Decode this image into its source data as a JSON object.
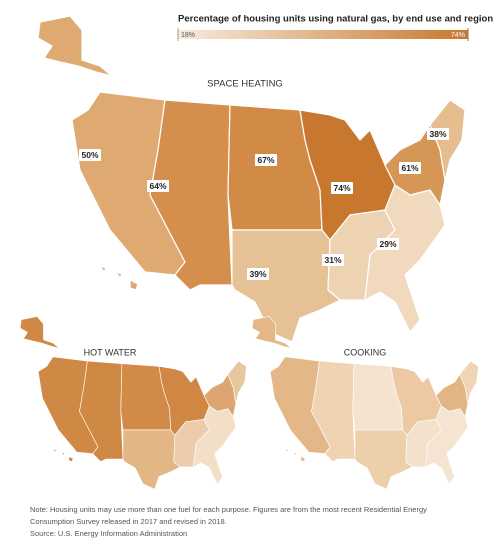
{
  "title": "Percentage of housing units using natural gas, by end use and region",
  "legend": {
    "min_label": "18%",
    "max_label": "74%",
    "colors": [
      "#f7ebdc",
      "#c8782e"
    ]
  },
  "maps": [
    {
      "title": "SPACE HEATING",
      "regions": [
        {
          "label": "50%",
          "color": "#deaa72"
        },
        {
          "label": "64%",
          "color": "#d48f4d"
        },
        {
          "label": "67%",
          "color": "#d28b47"
        },
        {
          "label": "39%",
          "color": "#e6c195"
        },
        {
          "label": "74%",
          "color": "#c8782e"
        },
        {
          "label": "31%",
          "color": "#eed3b3"
        },
        {
          "label": "29%",
          "color": "#f0d9bc"
        },
        {
          "label": "61%",
          "color": "#d69656"
        },
        {
          "label": "38%",
          "color": "#e5bd8f"
        }
      ]
    },
    {
      "title": "HOT WATER",
      "regions": [
        {
          "color": "#d08845"
        },
        {
          "color": "#d08845"
        },
        {
          "color": "#d18a47"
        },
        {
          "color": "#e3b785"
        },
        {
          "color": "#cf8743"
        },
        {
          "color": "#ecccab"
        },
        {
          "color": "#f2dfc6"
        },
        {
          "color": "#dca572"
        },
        {
          "color": "#e9c79e"
        }
      ]
    },
    {
      "title": "COOKING",
      "regions": [
        {
          "color": "#e3b787"
        },
        {
          "color": "#efd3b3"
        },
        {
          "color": "#f4e3cf"
        },
        {
          "color": "#edcfac"
        },
        {
          "color": "#ecc9a3"
        },
        {
          "color": "#f3e1cc"
        },
        {
          "color": "#f4e4d1"
        },
        {
          "color": "#e2b585"
        },
        {
          "color": "#f0d5b5"
        }
      ]
    }
  ],
  "note": [
    "Note: Housing units may use more than one fuel for each purpose. Figures are from the most recent Residential Energy",
    "Consumption Survey released in 2017 and revised in 2018."
  ],
  "source": "Source: U.S. Energy Information Administration"
}
